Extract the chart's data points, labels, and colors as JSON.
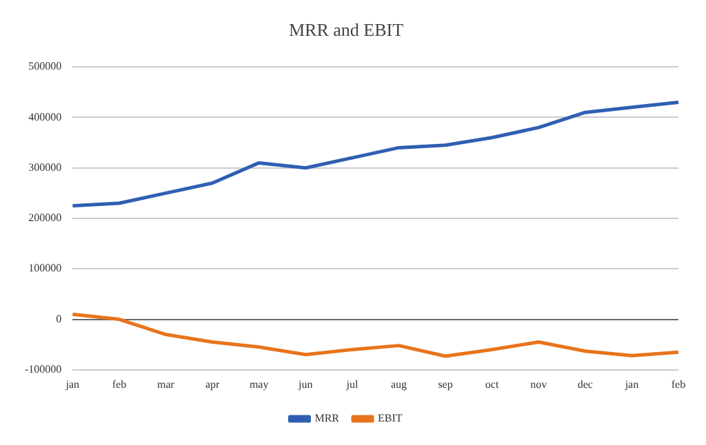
{
  "chart_data": {
    "type": "line",
    "title": "MRR and EBIT",
    "categories": [
      "jan",
      "feb",
      "mar",
      "apr",
      "may",
      "jun",
      "jul",
      "aug",
      "sep",
      "oct",
      "nov",
      "dec",
      "jan",
      "feb"
    ],
    "series": [
      {
        "name": "MRR",
        "color": "#2f5fb3",
        "values": [
          225000,
          230000,
          250000,
          270000,
          310000,
          300000,
          320000,
          340000,
          345000,
          360000,
          380000,
          410000,
          420000,
          430000
        ]
      },
      {
        "name": "EBIT",
        "color": "#e8741c",
        "values": [
          10000,
          0,
          -30000,
          -45000,
          -55000,
          -70000,
          -60000,
          -52000,
          -73000,
          -60000,
          -45000,
          -63000,
          -72000,
          -65000
        ]
      }
    ],
    "ylim": [
      -100000,
      500000
    ],
    "yticks": [
      -100000,
      0,
      100000,
      200000,
      300000,
      400000,
      500000
    ],
    "grid": "y",
    "legend": "bottom",
    "marker": "none",
    "line_style": "solid"
  }
}
